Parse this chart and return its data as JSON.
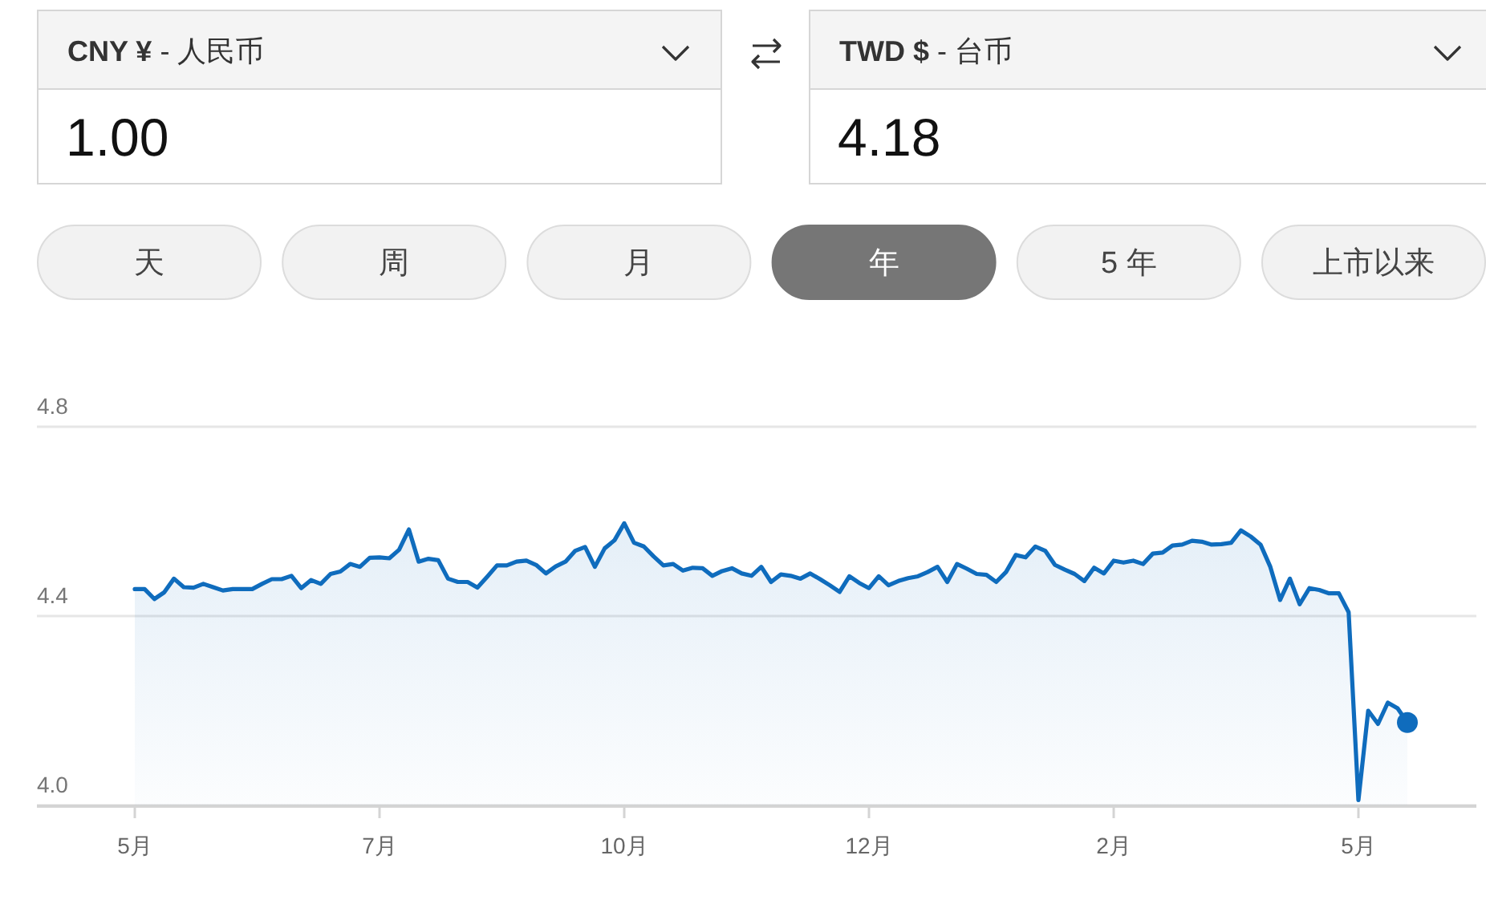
{
  "chart_data": [
    {
      "type": "other",
      "annotations": [
        "**CNY ¥** - 人民币",
        "1.00",
        "**TWD $** - 台币",
        "4.18"
      ],
      "categories": [
        "天",
        "周",
        "月",
        "年",
        "5 年",
        "上市以来"
      ],
      "colors": [
        "#f2f2f2",
        "#f2f2f2",
        "#f2f2f2",
        "#767676",
        "#f2f2f2",
        "#f2f2f2"
      ]
    },
    {
      "type": "area",
      "grid": "y",
      "ylim": [
        4.0,
        4.8
      ],
      "yticks": [
        {
          "value": 4,
          "label": "4.0"
        },
        4.4,
        4.8
      ],
      "categories": [
        "5月",
        null,
        null,
        null,
        null,
        null,
        null,
        null,
        null,
        null,
        null,
        null,
        null,
        null,
        null,
        null,
        null,
        null,
        null,
        null,
        null,
        null,
        null,
        null,
        null,
        "7月",
        null,
        null,
        null,
        null,
        null,
        null,
        null,
        null,
        null,
        null,
        null,
        null,
        null,
        null,
        null,
        null,
        null,
        null,
        null,
        null,
        null,
        null,
        null,
        null,
        "10月",
        null,
        null,
        null,
        null,
        null,
        null,
        null,
        null,
        null,
        null,
        null,
        null,
        null,
        null,
        null,
        null,
        null,
        null,
        null,
        null,
        null,
        null,
        null,
        null,
        "12月",
        null,
        null,
        null,
        null,
        null,
        null,
        null,
        null,
        null,
        null,
        null,
        null,
        null,
        null,
        null,
        null,
        null,
        null,
        null,
        null,
        null,
        null,
        null,
        null,
        "2月",
        null,
        null,
        null,
        null,
        null,
        null,
        null,
        null,
        null,
        null,
        null,
        null,
        null,
        null,
        null,
        null,
        null,
        null,
        null,
        null,
        null,
        null,
        null,
        null,
        "5月",
        null,
        null,
        null,
        null,
        null
      ],
      "series": [
        {
          "color": "#0f6cbd",
          "values": [
            4.457,
            4.457,
            4.436,
            4.45,
            4.479,
            4.461,
            4.46,
            4.468,
            4.461,
            4.454,
            4.457,
            4.457,
            4.457,
            4.468,
            4.478,
            4.478,
            4.485,
            4.459,
            4.476,
            4.468,
            4.489,
            4.494,
            4.51,
            4.504,
            4.523,
            4.524,
            4.522,
            4.54,
            4.583,
            4.515,
            4.521,
            4.518,
            4.479,
            4.472,
            4.472,
            4.46,
            4.483,
            4.507,
            4.507,
            4.515,
            4.517,
            4.508,
            4.49,
            4.505,
            4.515,
            4.538,
            4.546,
            4.504,
            4.543,
            4.56,
            4.596,
            4.555,
            4.547,
            4.526,
            4.507,
            4.51,
            4.496,
            4.502,
            4.501,
            4.485,
            4.495,
            4.501,
            4.49,
            4.485,
            4.504,
            4.472,
            4.488,
            4.485,
            4.479,
            4.49,
            4.478,
            4.465,
            4.451,
            4.484,
            4.47,
            4.459,
            4.484,
            4.465,
            4.474,
            4.48,
            4.484,
            4.493,
            4.504,
            4.472,
            4.51,
            4.5,
            4.489,
            4.487,
            4.472,
            4.493,
            4.529,
            4.524,
            4.547,
            4.538,
            4.508,
            4.498,
            4.489,
            4.474,
            4.502,
            4.49,
            4.517,
            4.513,
            4.517,
            4.51,
            4.532,
            4.534,
            4.549,
            4.551,
            4.559,
            4.557,
            4.551,
            4.552,
            4.555,
            4.581,
            4.568,
            4.551,
            4.504,
            4.434,
            4.479,
            4.425,
            4.459,
            4.455,
            4.448,
            4.448,
            4.408,
            4.011,
            4.2,
            4.172,
            4.217,
            4.205,
            4.175
          ]
        },
        {
          "type": "scatter",
          "marker": "circle",
          "color": "#0f6cbd",
          "values": [
            null,
            null,
            null,
            null,
            null,
            null,
            null,
            null,
            null,
            null,
            null,
            null,
            null,
            null,
            null,
            null,
            null,
            null,
            null,
            null,
            null,
            null,
            null,
            null,
            null,
            null,
            null,
            null,
            null,
            null,
            null,
            null,
            null,
            null,
            null,
            null,
            null,
            null,
            null,
            null,
            null,
            null,
            null,
            null,
            null,
            null,
            null,
            null,
            null,
            null,
            null,
            null,
            null,
            null,
            null,
            null,
            null,
            null,
            null,
            null,
            null,
            null,
            null,
            null,
            null,
            null,
            null,
            null,
            null,
            null,
            null,
            null,
            null,
            null,
            null,
            null,
            null,
            null,
            null,
            null,
            null,
            null,
            null,
            null,
            null,
            null,
            null,
            null,
            null,
            null,
            null,
            null,
            null,
            null,
            null,
            null,
            null,
            null,
            null,
            null,
            null,
            null,
            null,
            null,
            null,
            null,
            null,
            null,
            null,
            null,
            null,
            null,
            null,
            null,
            null,
            null,
            null,
            null,
            null,
            null,
            null,
            null,
            null,
            null,
            null,
            null,
            null,
            null,
            null,
            null,
            4.175
          ]
        }
      ]
    }
  ]
}
